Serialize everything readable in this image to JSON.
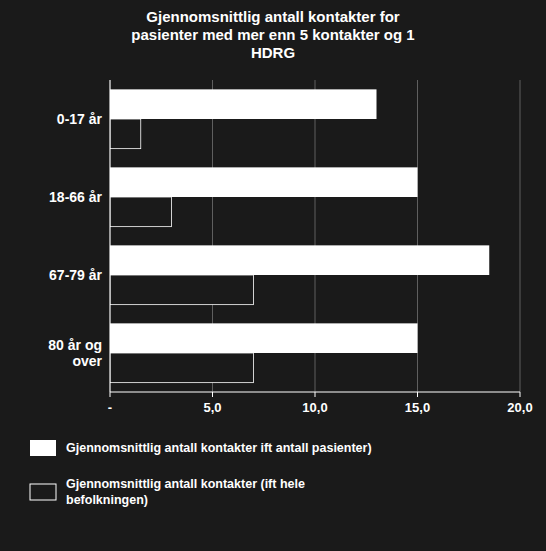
{
  "chart_data": {
    "type": "bar",
    "orientation": "horizontal",
    "title": "Gjennomsnittlig antall kontakter for\npasienter med mer enn 5 kontakter og 1\nHDRG",
    "categories": [
      "0-17 år",
      "18-66 år",
      "67-79 år",
      "80 år og\nover"
    ],
    "series": [
      {
        "name": "Gjennomsnittlig antall kontakter ift antall pasienter)",
        "color": "#ffffff",
        "values": [
          13.0,
          15.0,
          18.5,
          15.0
        ]
      },
      {
        "name": "Gjennomsnittlig antall kontakter (ift hele\nbefolkningen)",
        "color": "#1a1a1a",
        "values": [
          1.5,
          3.0,
          7.0,
          7.0
        ]
      }
    ],
    "xlim": [
      0,
      20
    ],
    "xticks": [
      {
        "value": 0,
        "label": "-"
      },
      {
        "value": 5,
        "label": "5,0"
      },
      {
        "value": 10,
        "label": "10,0"
      },
      {
        "value": 15,
        "label": "15,0"
      },
      {
        "value": 20,
        "label": "20,0"
      }
    ],
    "grid": true,
    "legend": "bottom"
  }
}
